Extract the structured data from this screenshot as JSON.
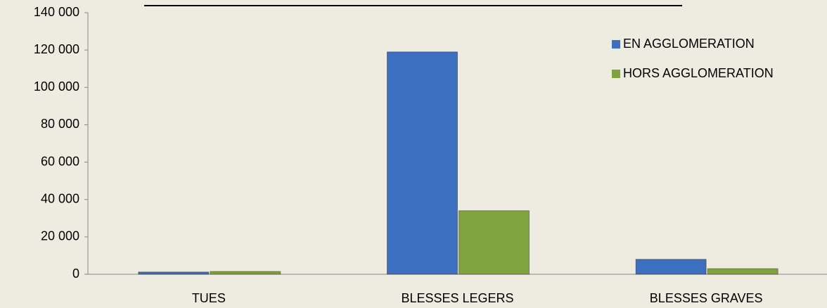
{
  "chart_data": {
    "type": "bar",
    "categories": [
      "TUES",
      "BLESSES LEGERS",
      "BLESSES GRAVES"
    ],
    "series": [
      {
        "name": "EN AGGLOMERATION",
        "color": "#3c6fbf",
        "values": [
          1200,
          119000,
          8000
        ]
      },
      {
        "name": "HORS AGGLOMERATION",
        "color": "#80a33f",
        "values": [
          1500,
          34000,
          3000
        ]
      }
    ],
    "ylim": [
      0,
      140000
    ],
    "yticks": [
      0,
      {
        "value": 20000,
        "label": "20 000"
      },
      {
        "value": 40000,
        "label": "40 000"
      },
      {
        "value": 60000,
        "label": "60 000"
      },
      {
        "value": 80000,
        "label": "80 000"
      },
      {
        "value": 100000,
        "label": "100 000"
      },
      {
        "value": 120000,
        "label": "120 000"
      },
      {
        "value": 140000,
        "label": "140 000"
      }
    ],
    "legend": "top-right"
  }
}
